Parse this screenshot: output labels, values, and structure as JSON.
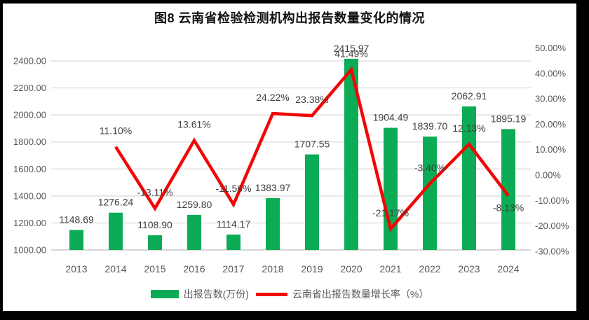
{
  "title": "图8 云南省检验检测机构出报告数量变化的情况",
  "chart_data": {
    "type": "combo-bar-line",
    "title": "图8 云南省检验检测机构出报告数量变化的情况",
    "categories": [
      "2013",
      "2014",
      "2015",
      "2016",
      "2017",
      "2018",
      "2019",
      "2020",
      "2021",
      "2022",
      "2023",
      "2024"
    ],
    "series": [
      {
        "name": "出报告数(万份)",
        "type": "bar",
        "color": "#0CAB56",
        "values": [
          1148.69,
          1276.24,
          1108.9,
          1259.8,
          1114.17,
          1383.97,
          1707.55,
          2415.97,
          1904.49,
          1839.7,
          2062.91,
          1895.19
        ]
      },
      {
        "name": "云南省出报告数量增长率（%）",
        "type": "line",
        "color": "#F40505",
        "values": [
          null,
          11.1,
          -13.11,
          13.61,
          -11.56,
          24.22,
          23.38,
          41.49,
          -21.17,
          -3.4,
          12.13,
          -8.13
        ],
        "labels_below_indices": [
          11
        ]
      }
    ],
    "left_axis": {
      "min": 1000,
      "max": 2400,
      "step": 200,
      "tick_labels": [
        "1000.00",
        "1200.00",
        "1400.00",
        "1600.00",
        "1800.00",
        "2000.00",
        "2200.00",
        "2400.00"
      ]
    },
    "right_axis": {
      "min": -30,
      "max": 50,
      "step": 10,
      "tick_labels": [
        "-30.00%",
        "-20.00%",
        "-10.00%",
        "0.00%",
        "10.00%",
        "20.00%",
        "30.00%",
        "40.00%",
        "50.00%"
      ]
    },
    "grid": true,
    "legend_position": "bottom",
    "colors": {
      "gridline": "#D9D9D9",
      "baseline": "#BFBFBF",
      "axis_text": "#595959",
      "data_label_text": "#3F3F3F"
    }
  }
}
